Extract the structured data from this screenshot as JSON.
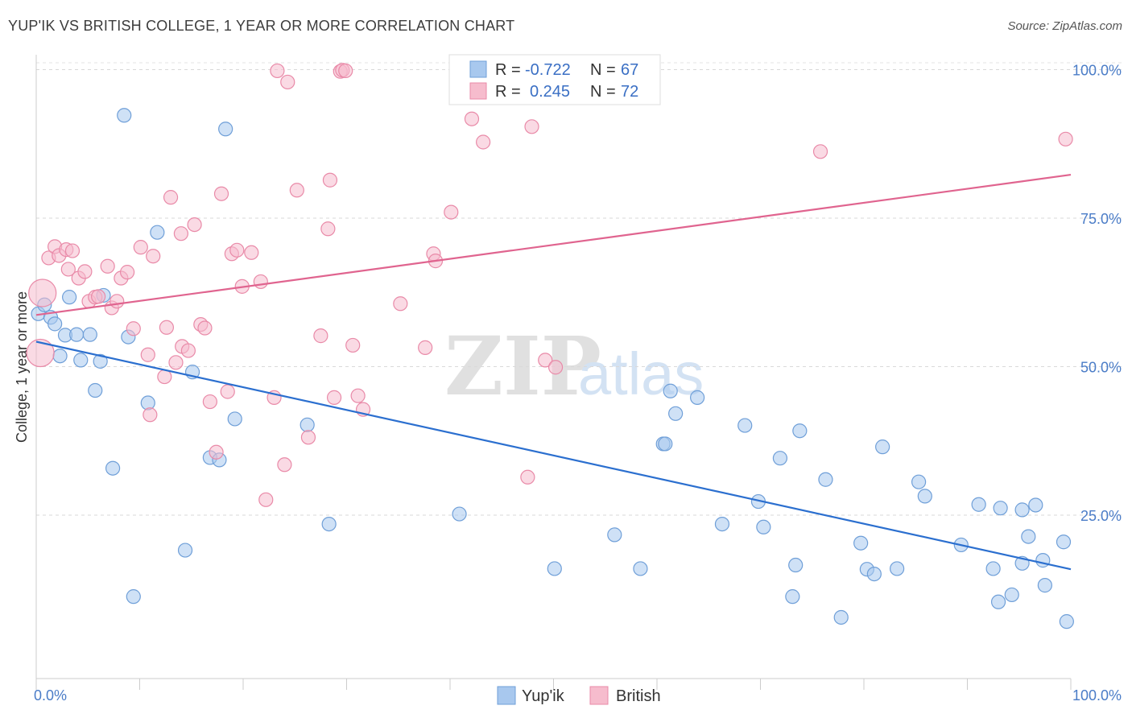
{
  "chart_data": {
    "type": "scatter",
    "title": "YUP'IK VS BRITISH COLLEGE, 1 YEAR OR MORE CORRELATION CHART",
    "source": "Source: ZipAtlas.com",
    "ylabel": "College, 1 year or more",
    "xlim": [
      0,
      100
    ],
    "ylim": [
      -2.5,
      102.5
    ],
    "x_tick_labels": [
      "0.0%",
      "100.0%"
    ],
    "y_tick_labels": [
      {
        "value": 25,
        "label": "25.0%"
      },
      {
        "value": 50,
        "label": "50.0%"
      },
      {
        "value": 75,
        "label": "75.0%"
      },
      {
        "value": 100,
        "label": "100.0%"
      }
    ],
    "legend": {
      "r_label": "R =",
      "n_label": "N =",
      "entries": [
        {
          "name": "Yup'ik",
          "r": "-0.722",
          "n": "67",
          "color": "#a8c8ee",
          "stroke": "#6f9fd8"
        },
        {
          "name": "British",
          "r": "0.245",
          "n": "72",
          "color": "#f6bccd",
          "stroke": "#e98aa8"
        }
      ]
    },
    "watermark": {
      "zip": "ZIP",
      "atlas": "atlas"
    },
    "series": [
      {
        "name": "Yup'ik",
        "fill": "#a8c8ee",
        "stroke": "#6f9fd8",
        "trend_color": "#2b6fcf",
        "trend": [
          [
            0,
            54.2
          ],
          [
            100,
            15.9
          ]
        ],
        "points": [
          [
            0.2,
            58.9
          ],
          [
            0.8,
            60.4
          ],
          [
            1.4,
            58.3
          ],
          [
            1.8,
            57.2
          ],
          [
            2.3,
            51.8
          ],
          [
            2.8,
            55.3
          ],
          [
            3.2,
            61.7
          ],
          [
            3.9,
            55.4
          ],
          [
            4.3,
            51.1
          ],
          [
            5.2,
            55.4
          ],
          [
            5.7,
            46.0
          ],
          [
            6.2,
            50.9
          ],
          [
            6.5,
            62.0
          ],
          [
            7.4,
            32.9
          ],
          [
            8.5,
            92.3
          ],
          [
            8.9,
            55.0
          ],
          [
            9.4,
            11.3
          ],
          [
            10.8,
            43.9
          ],
          [
            11.7,
            72.6
          ],
          [
            14.4,
            19.1
          ],
          [
            15.1,
            49.1
          ],
          [
            16.8,
            34.7
          ],
          [
            17.7,
            34.3
          ],
          [
            18.3,
            90.0
          ],
          [
            19.2,
            41.2
          ],
          [
            26.2,
            40.2
          ],
          [
            28.3,
            23.5
          ],
          [
            40.9,
            25.2
          ],
          [
            50.1,
            16.0
          ],
          [
            55.9,
            21.7
          ],
          [
            58.4,
            16.0
          ],
          [
            60.6,
            37.0
          ],
          [
            60.8,
            37.0
          ],
          [
            61.3,
            45.9
          ],
          [
            61.8,
            42.1
          ],
          [
            63.9,
            44.8
          ],
          [
            66.3,
            23.5
          ],
          [
            68.5,
            40.1
          ],
          [
            69.8,
            27.3
          ],
          [
            70.3,
            23.0
          ],
          [
            71.9,
            34.6
          ],
          [
            73.1,
            11.3
          ],
          [
            73.4,
            16.6
          ],
          [
            73.8,
            39.2
          ],
          [
            76.3,
            31.0
          ],
          [
            77.8,
            7.8
          ],
          [
            79.7,
            20.3
          ],
          [
            80.3,
            15.9
          ],
          [
            81.0,
            15.1
          ],
          [
            81.8,
            36.5
          ],
          [
            83.2,
            16.0
          ],
          [
            85.3,
            30.6
          ],
          [
            85.9,
            28.2
          ],
          [
            89.4,
            20.0
          ],
          [
            91.1,
            26.8
          ],
          [
            92.5,
            16.0
          ],
          [
            93.0,
            10.4
          ],
          [
            93.2,
            26.2
          ],
          [
            94.3,
            11.6
          ],
          [
            95.3,
            16.9
          ],
          [
            95.3,
            25.9
          ],
          [
            95.9,
            21.4
          ],
          [
            96.6,
            26.7
          ],
          [
            97.3,
            17.4
          ],
          [
            97.5,
            13.2
          ],
          [
            99.3,
            20.5
          ],
          [
            99.6,
            7.1
          ]
        ]
      },
      {
        "name": "British",
        "fill": "#f6bccd",
        "stroke": "#e98aa8",
        "trend_color": "#e0648f",
        "trend": [
          [
            0,
            58.7
          ],
          [
            100,
            82.3
          ]
        ],
        "points": [
          [
            0.4,
            52.3
          ],
          [
            0.6,
            62.4
          ],
          [
            1.2,
            68.3
          ],
          [
            1.8,
            70.2
          ],
          [
            2.2,
            68.7
          ],
          [
            2.9,
            69.7
          ],
          [
            3.1,
            66.4
          ],
          [
            3.5,
            69.5
          ],
          [
            4.1,
            64.9
          ],
          [
            4.7,
            66.0
          ],
          [
            5.1,
            61.0
          ],
          [
            5.7,
            61.7
          ],
          [
            6.0,
            61.8
          ],
          [
            6.9,
            66.9
          ],
          [
            7.3,
            59.9
          ],
          [
            7.8,
            61.0
          ],
          [
            8.2,
            64.9
          ],
          [
            8.8,
            65.9
          ],
          [
            9.4,
            56.4
          ],
          [
            10.1,
            70.1
          ],
          [
            10.8,
            52.0
          ],
          [
            11.0,
            41.9
          ],
          [
            11.3,
            68.6
          ],
          [
            12.4,
            48.3
          ],
          [
            12.6,
            56.6
          ],
          [
            13.0,
            78.5
          ],
          [
            13.5,
            50.7
          ],
          [
            14.0,
            72.4
          ],
          [
            14.1,
            53.4
          ],
          [
            14.7,
            52.7
          ],
          [
            15.3,
            73.9
          ],
          [
            15.9,
            57.1
          ],
          [
            16.3,
            56.5
          ],
          [
            16.8,
            44.1
          ],
          [
            17.4,
            35.6
          ],
          [
            17.9,
            79.1
          ],
          [
            18.5,
            45.8
          ],
          [
            18.9,
            69.0
          ],
          [
            19.4,
            69.6
          ],
          [
            19.9,
            63.5
          ],
          [
            20.8,
            69.2
          ],
          [
            21.7,
            64.3
          ],
          [
            22.2,
            27.6
          ],
          [
            23.0,
            44.8
          ],
          [
            23.3,
            99.8
          ],
          [
            24.0,
            33.5
          ],
          [
            24.3,
            97.9
          ],
          [
            25.2,
            79.7
          ],
          [
            26.3,
            38.1
          ],
          [
            27.5,
            55.2
          ],
          [
            28.2,
            73.2
          ],
          [
            28.4,
            81.4
          ],
          [
            28.8,
            44.8
          ],
          [
            29.4,
            99.7
          ],
          [
            29.6,
            99.9
          ],
          [
            29.9,
            99.8
          ],
          [
            30.6,
            53.6
          ],
          [
            31.1,
            45.1
          ],
          [
            31.6,
            42.8
          ],
          [
            35.2,
            60.6
          ],
          [
            37.6,
            53.2
          ],
          [
            38.4,
            69.0
          ],
          [
            38.6,
            67.8
          ],
          [
            40.1,
            76.0
          ],
          [
            42.1,
            91.7
          ],
          [
            43.2,
            87.8
          ],
          [
            47.5,
            31.4
          ],
          [
            47.9,
            90.4
          ],
          [
            49.2,
            51.1
          ],
          [
            50.2,
            49.9
          ],
          [
            75.8,
            86.2
          ],
          [
            99.5,
            88.3
          ]
        ]
      }
    ]
  },
  "bottom_legend": [
    "Yup'ik",
    "British"
  ]
}
